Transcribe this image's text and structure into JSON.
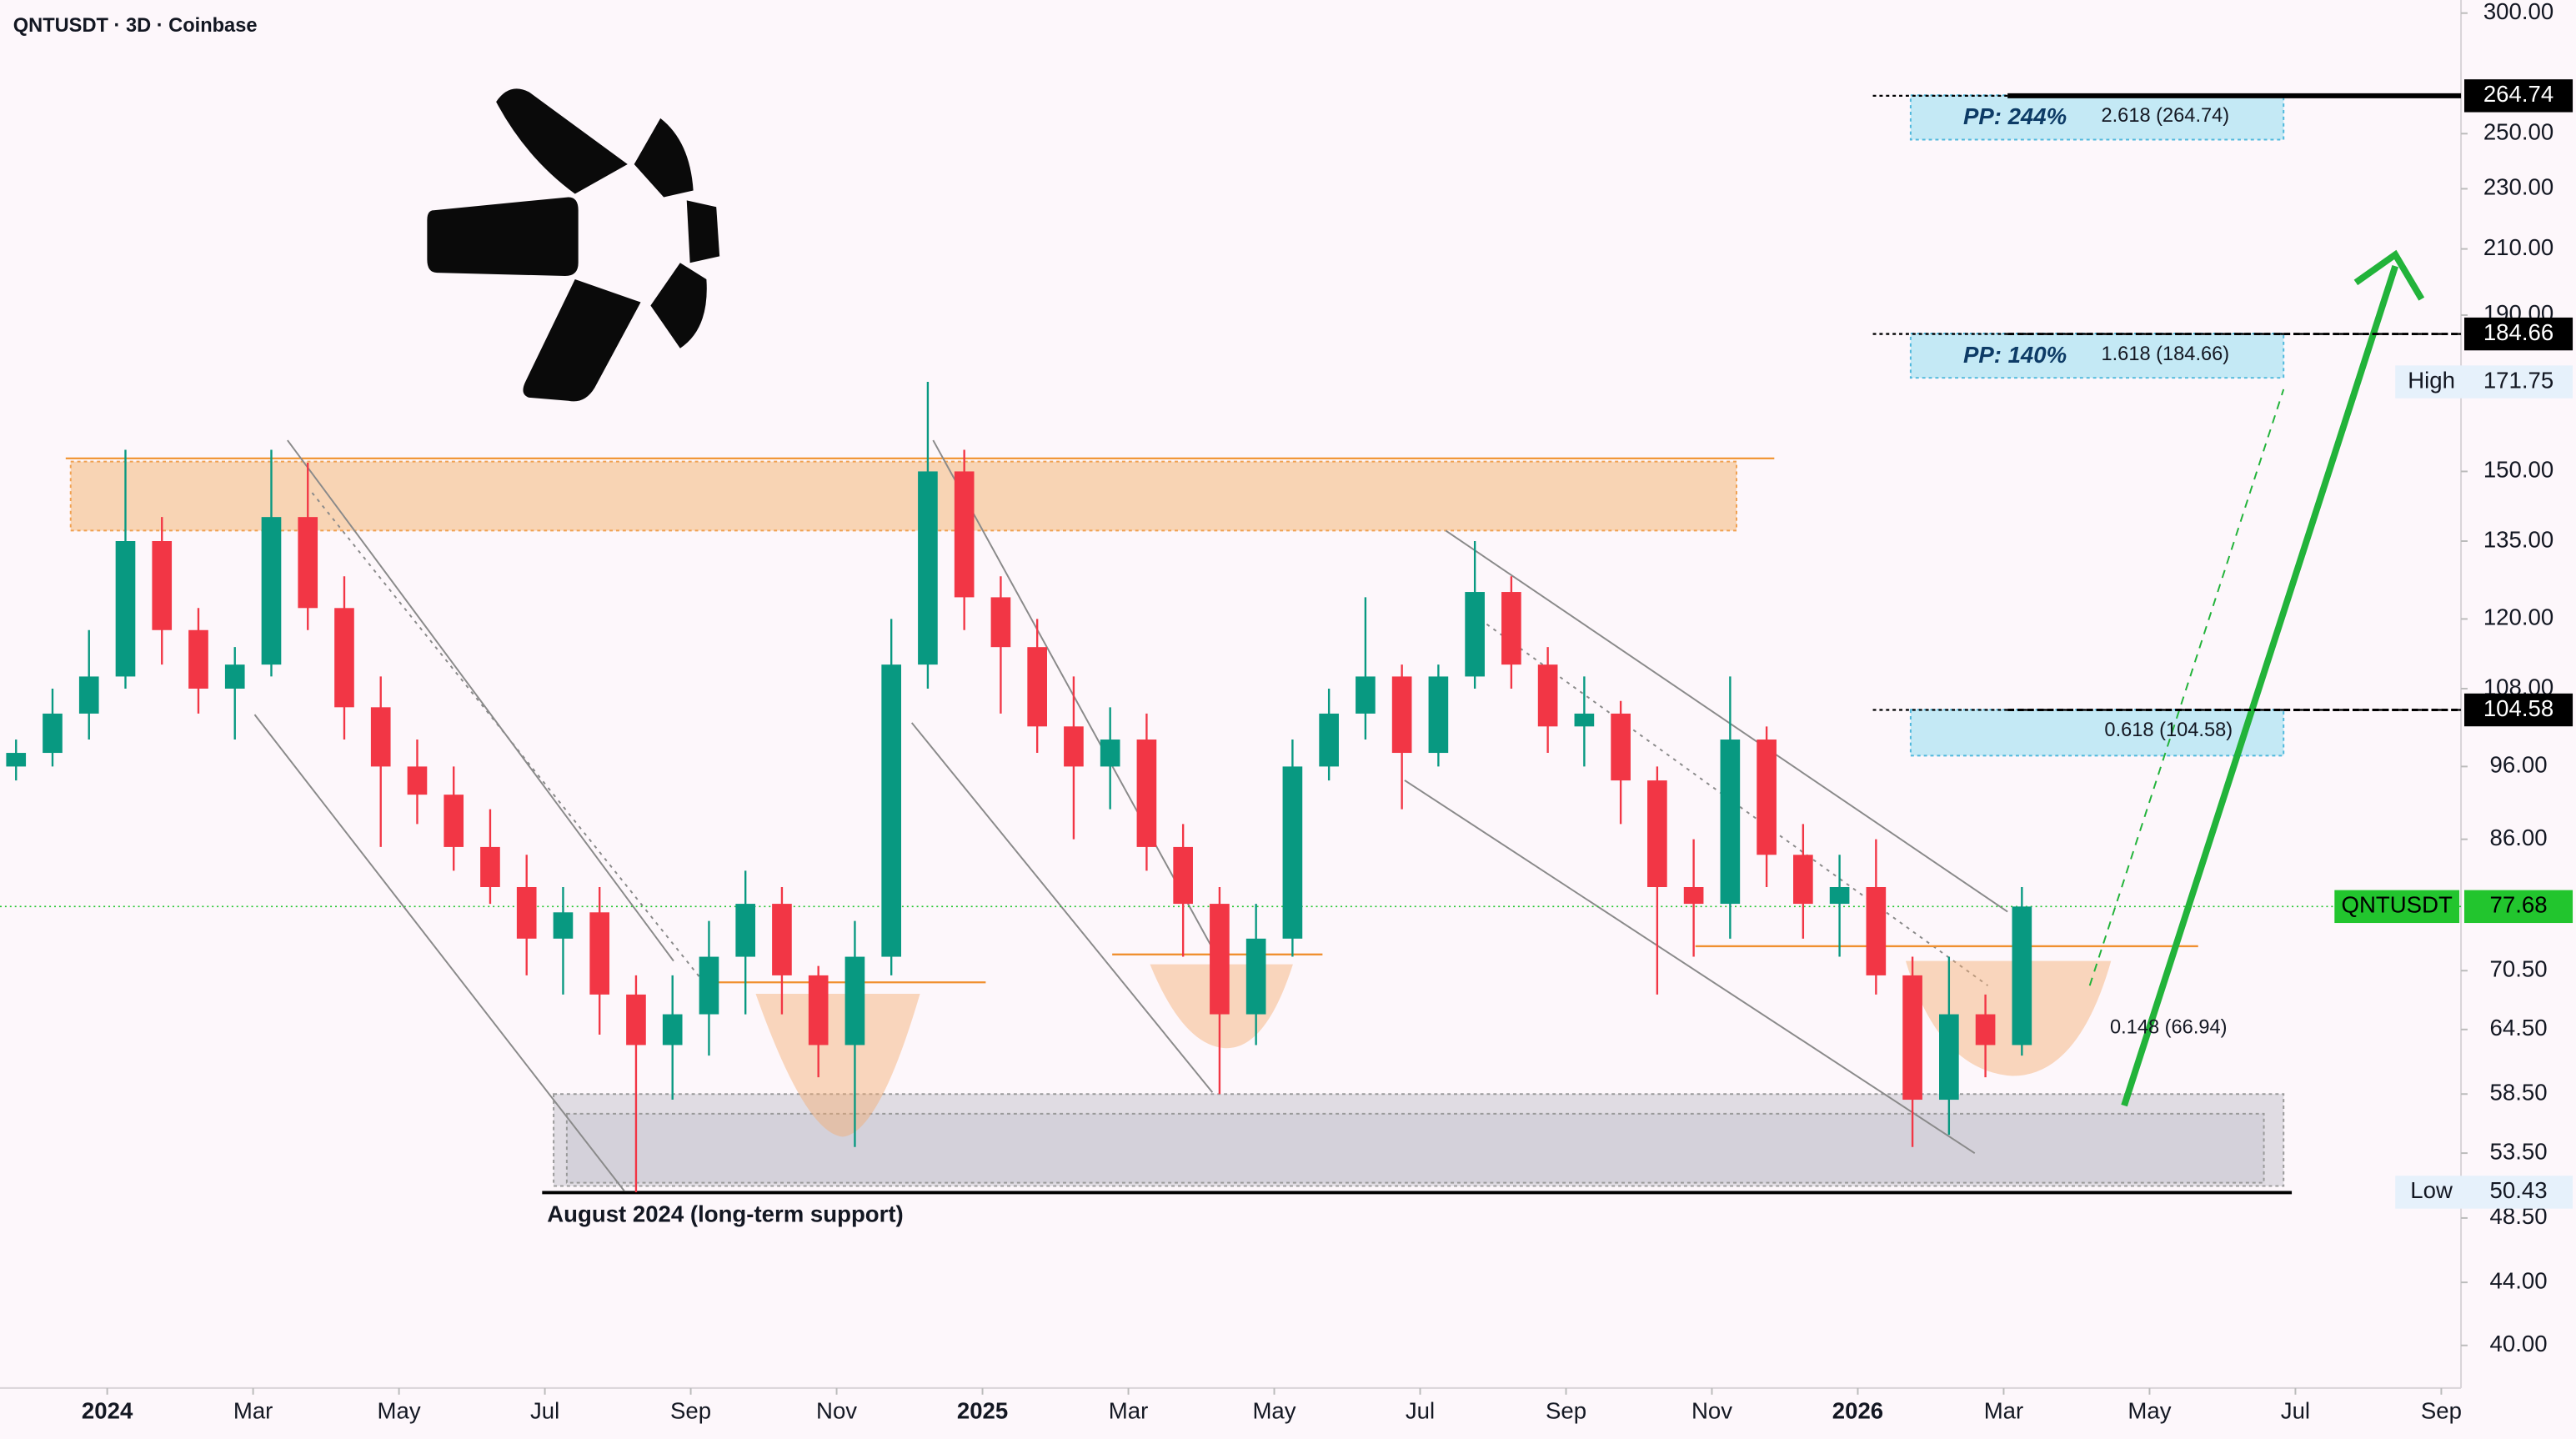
{
  "chart_data": {
    "type": "candlestick",
    "title": "QNTUSDT · 3D · Coinbase",
    "log_scale": true,
    "grid": false,
    "xlim": [
      -1.47,
      32.27
    ],
    "ylim": [
      37.5,
      306
    ],
    "xticks": [
      {
        "value": 0,
        "label": "2024"
      },
      {
        "value": 2,
        "label": "Mar"
      },
      {
        "value": 4,
        "label": "May"
      },
      {
        "value": 6,
        "label": "Jul"
      },
      {
        "value": 8,
        "label": "Sep"
      },
      {
        "value": 10,
        "label": "Nov"
      },
      {
        "value": 12,
        "label": "2025"
      },
      {
        "value": 14,
        "label": "Mar"
      },
      {
        "value": 16,
        "label": "May"
      },
      {
        "value": 18,
        "label": "Jul"
      },
      {
        "value": 20,
        "label": "Sep"
      },
      {
        "value": 22,
        "label": "Nov"
      },
      {
        "value": 24,
        "label": "2026"
      },
      {
        "value": 26,
        "label": "Mar"
      },
      {
        "value": 28,
        "label": "May"
      },
      {
        "value": 30,
        "label": "Jul"
      },
      {
        "value": 32,
        "label": "Sep"
      }
    ],
    "yticks": [
      {
        "value": 300,
        "label": "300.00"
      },
      {
        "value": 250,
        "label": "250.00"
      },
      {
        "value": 230,
        "label": "230.00"
      },
      {
        "value": 210,
        "label": "210.00"
      },
      {
        "value": 190,
        "label": "190.00"
      },
      {
        "value": 150,
        "label": "150.00"
      },
      {
        "value": 135,
        "label": "135.00"
      },
      {
        "value": 120,
        "label": "120.00"
      },
      {
        "value": 108,
        "label": "108.00"
      },
      {
        "value": 96,
        "label": "96.00"
      },
      {
        "value": 86,
        "label": "86.00"
      },
      {
        "value": 70.5,
        "label": "70.50"
      },
      {
        "value": 64.5,
        "label": "64.50"
      },
      {
        "value": 58.5,
        "label": "58.50"
      },
      {
        "value": 53.5,
        "label": "53.50"
      },
      {
        "value": 48.5,
        "label": "48.50"
      },
      {
        "value": 44,
        "label": "44.00"
      },
      {
        "value": 40,
        "label": "40.00"
      }
    ],
    "series": [
      {
        "name": "QNTUSDT",
        "up_color": "#089981",
        "down_color": "#f23645",
        "last_color": "#22c52e",
        "x": [
          -1.25,
          -0.75,
          -0.25,
          0.25,
          0.75,
          1.25,
          1.75,
          2.25,
          2.75,
          3.25,
          3.75,
          4.25,
          4.75,
          5.25,
          5.75,
          6.25,
          6.75,
          7.25,
          7.75,
          8.25,
          8.75,
          9.25,
          9.75,
          10.25,
          10.75,
          11.25,
          11.75,
          12.25,
          12.75,
          13.25,
          13.75,
          14.25,
          14.75,
          15.25,
          15.75,
          16.25,
          16.75,
          17.25,
          17.75,
          18.25,
          18.75,
          19.25,
          19.75,
          20.25,
          20.75,
          21.25,
          21.75,
          22.25,
          22.75,
          23.25,
          23.75,
          24.25,
          24.75,
          25.25,
          25.75,
          26.25
        ],
        "open": [
          96,
          98,
          104,
          110,
          135,
          118,
          108,
          112,
          140,
          122,
          105,
          96,
          92,
          85,
          80,
          74,
          77,
          68,
          63,
          66,
          72,
          78,
          70,
          63,
          72,
          112,
          150,
          124,
          115,
          102,
          96,
          100,
          85,
          78,
          66,
          74,
          96,
          104,
          110,
          98,
          110,
          125,
          112,
          102,
          104,
          94,
          80,
          78,
          100,
          84,
          78,
          80,
          70,
          58,
          66,
          63
        ],
        "high": [
          100,
          108,
          118,
          155,
          140,
          122,
          115,
          155,
          152,
          128,
          110,
          100,
          96,
          90,
          84,
          80,
          80,
          70,
          70,
          76,
          82,
          80,
          71,
          76,
          120,
          171.75,
          155,
          128,
          120,
          110,
          105,
          104,
          88,
          80,
          78,
          100,
          108,
          124,
          112,
          112,
          135,
          128,
          115,
          110,
          106,
          96,
          86,
          110,
          102,
          88,
          84,
          86,
          72,
          72,
          68,
          80
        ],
        "low": [
          94,
          96,
          100,
          108,
          112,
          104,
          100,
          110,
          118,
          100,
          85,
          88,
          82,
          78,
          70,
          68,
          64,
          50.43,
          58,
          62,
          66,
          66,
          60,
          54,
          70,
          108,
          118,
          104,
          98,
          86,
          90,
          82,
          72,
          58.5,
          63,
          72,
          94,
          100,
          90,
          96,
          108,
          108,
          98,
          96,
          88,
          68,
          72,
          74,
          80,
          74,
          72,
          68,
          54,
          55,
          60,
          62
        ],
        "close": [
          98,
          104,
          110,
          135,
          118,
          108,
          112,
          140,
          122,
          105,
          96,
          92,
          85,
          80,
          74,
          77,
          68,
          63,
          66,
          72,
          78,
          70,
          63,
          72,
          112,
          150,
          124,
          115,
          102,
          96,
          100,
          85,
          78,
          66,
          74,
          96,
          104,
          110,
          98,
          110,
          125,
          112,
          102,
          104,
          94,
          80,
          78,
          100,
          84,
          78,
          80,
          70,
          58,
          66,
          63,
          77.68
        ]
      }
    ],
    "price_tags": [
      264.74,
      184.66,
      104.58
    ],
    "high_label": "High",
    "low_label": "Low",
    "targets": [
      {
        "name": "PP: 244%",
        "level": "2.618 (264.74)"
      },
      {
        "name": "PP: 140%",
        "level": "1.618 (184.66)"
      },
      {
        "level": "0.618 (104.58)"
      },
      {
        "level": "0.148 (66.94)"
      }
    ],
    "support_label": "August 2024 (long-term support)"
  }
}
